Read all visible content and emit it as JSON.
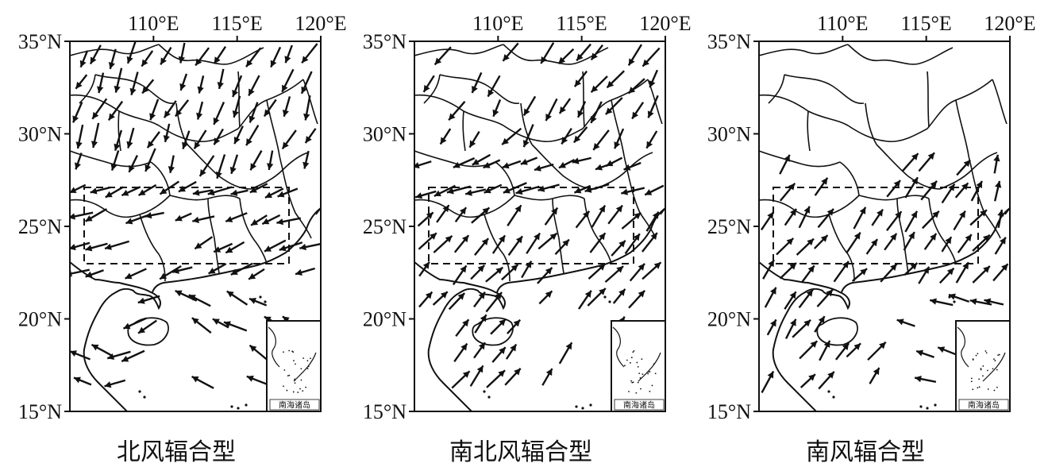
{
  "panels": [
    {
      "id": "north",
      "caption": "北风辐合型",
      "pattern": "north",
      "x_ticks": [
        "110°E",
        "115°E",
        "120°E"
      ],
      "y_ticks": [
        "35°N",
        "30°N",
        "25°N",
        "20°N",
        "15°N"
      ],
      "inset_label": "南海诸岛"
    },
    {
      "id": "north-south",
      "caption": "南北风辐合型",
      "pattern": "northsouth",
      "x_ticks": [
        "110°E",
        "115°E",
        "120°E"
      ],
      "y_ticks": [
        "35°N",
        "30°N",
        "25°N",
        "20°N",
        "15°N"
      ],
      "inset_label": "南海诸岛"
    },
    {
      "id": "south",
      "caption": "南风辐合型",
      "pattern": "south",
      "x_ticks": [
        "110°E",
        "115°E",
        "120°E"
      ],
      "y_ticks": [
        "35°N",
        "30°N",
        "25°N",
        "20°N",
        "15°N"
      ],
      "inset_label": "南海诸岛"
    }
  ],
  "style": {
    "line_color": "#111111",
    "background": "#ffffff"
  }
}
